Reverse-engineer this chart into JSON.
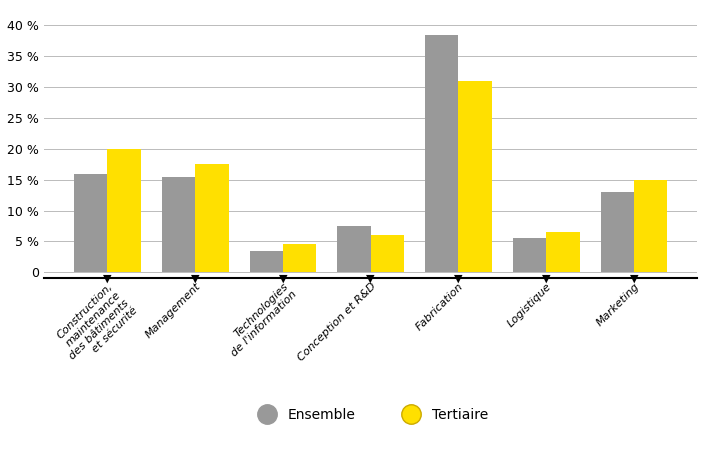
{
  "categories": [
    "Construction,\nmaintenance\ndes bâtiments\net sécurité",
    "Management",
    "Technologies\nde l'information",
    "Conception et R&D",
    "Fabrication",
    "Logistique",
    "Marketing"
  ],
  "ensemble": [
    16,
    15.5,
    3.5,
    7.5,
    38.5,
    5.5,
    13
  ],
  "tertiaire": [
    20,
    17.5,
    4.5,
    6,
    31,
    6.5,
    15
  ],
  "color_ensemble": "#999999",
  "color_tertiaire": "#FFE000",
  "ylabel_ticks": [
    0,
    5,
    10,
    15,
    20,
    25,
    30,
    35,
    40
  ],
  "ylim": [
    -1,
    43
  ],
  "legend_labels": [
    "Ensemble",
    "Tertiaire"
  ],
  "bar_width": 0.38,
  "background_color": "#ffffff",
  "grid_color": "#bbbbbb",
  "spine_color": "#000000"
}
